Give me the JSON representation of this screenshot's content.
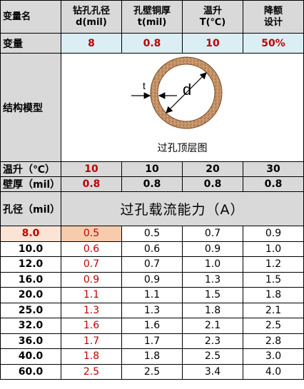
{
  "header": {
    "var_name": "变量名",
    "col1_line1": "钻孔孔径",
    "col1_line2": "d(mil)",
    "col2_line1": "孔壁铜厚",
    "col2_line2": "t(mil)",
    "col3_line1": "温升",
    "col3_line2": "T(℃)",
    "col4_line1": "降额",
    "col4_line2": "设计"
  },
  "variables": {
    "label": "变量",
    "values": [
      "8",
      "0.8",
      "10",
      "50%"
    ]
  },
  "structure": {
    "label": "结构模型",
    "caption": "过孔顶层图",
    "t_label": "t",
    "d_label": "d"
  },
  "temp_rise": {
    "label": "温升（℃）",
    "values": [
      "10",
      "10",
      "20",
      "30"
    ]
  },
  "wall_thickness": {
    "label": "壁厚（mil）",
    "values": [
      "0.8",
      "0.8",
      "0.8",
      "0.8"
    ]
  },
  "table_title": {
    "label": "孔径（mil）",
    "title": "过孔载流能力（A）"
  },
  "rows": [
    {
      "d": "8.0",
      "v": [
        "0.5",
        "0.5",
        "0.7",
        "0.9"
      ]
    },
    {
      "d": "10.0",
      "v": [
        "0.6",
        "0.6",
        "0.9",
        "1.0"
      ]
    },
    {
      "d": "12.0",
      "v": [
        "0.7",
        "0.7",
        "1.0",
        "1.2"
      ]
    },
    {
      "d": "16.0",
      "v": [
        "0.9",
        "0.9",
        "1.3",
        "1.5"
      ]
    },
    {
      "d": "20.0",
      "v": [
        "1.1",
        "1.1",
        "1.5",
        "1.8"
      ]
    },
    {
      "d": "25.0",
      "v": [
        "1.3",
        "1.3",
        "1.8",
        "2.1"
      ]
    },
    {
      "d": "32.0",
      "v": [
        "1.6",
        "1.6",
        "2.1",
        "2.5"
      ]
    },
    {
      "d": "36.0",
      "v": [
        "1.7",
        "1.7",
        "2.3",
        "2.8"
      ]
    },
    {
      "d": "40.0",
      "v": [
        "1.8",
        "1.8",
        "2.5",
        "3.0"
      ]
    },
    {
      "d": "60.0",
      "v": [
        "2.5",
        "2.5",
        "3.4",
        "4.0"
      ]
    }
  ],
  "colors": {
    "accent_red": "#c00000",
    "header_gray": "#d9d9d9",
    "variable_blue": "#dbeef4",
    "highlight_orange": "#f8cbad",
    "ring_copper": "#c8956a"
  }
}
